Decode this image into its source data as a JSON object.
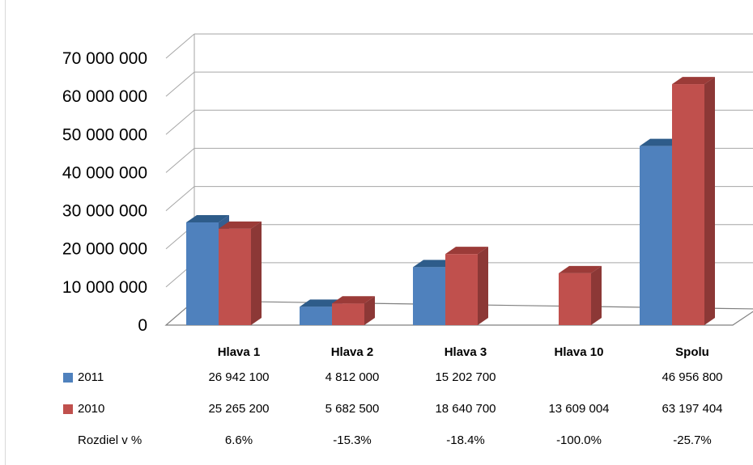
{
  "chart_data": {
    "type": "bar",
    "style": "3d-clustered-column",
    "categories": [
      "Hlava 1",
      "Hlava 2",
      "Hlava 3",
      "Hlava 10",
      "Spolu"
    ],
    "series": [
      {
        "name": "2011",
        "color": "#4F81BD",
        "side_color": "#365F91",
        "top_color": "#2E5C8A",
        "values": [
          26942100,
          4812000,
          15202700,
          null,
          46956800
        ]
      },
      {
        "name": "2010",
        "color": "#C0504D",
        "side_color": "#8C3836",
        "top_color": "#9B3B38",
        "values": [
          25265200,
          5682500,
          18640700,
          13609004,
          63197404
        ]
      }
    ],
    "ylim": [
      0,
      70000000
    ],
    "yticks": [
      "0",
      "10 000 000",
      "20 000 000",
      "30 000 000",
      "40 000 000",
      "50 000 000",
      "60 000 000",
      "70 000 000"
    ],
    "grid": true,
    "legend": "data-table"
  },
  "table": {
    "rows": [
      {
        "label": "2011",
        "color": "#4F81BD",
        "cells": [
          "26 942 100",
          "4 812 000",
          "15 202 700",
          "",
          "46 956 800"
        ]
      },
      {
        "label": "2010",
        "color": "#C0504D",
        "cells": [
          "25 265 200",
          "5 682 500",
          "18 640 700",
          "13 609 004",
          "63 197 404"
        ]
      },
      {
        "label": "Rozdiel v %",
        "color": "",
        "cells": [
          "6.6%",
          "-15.3%",
          "-18.4%",
          "-100.0%",
          "-25.7%"
        ]
      }
    ]
  }
}
